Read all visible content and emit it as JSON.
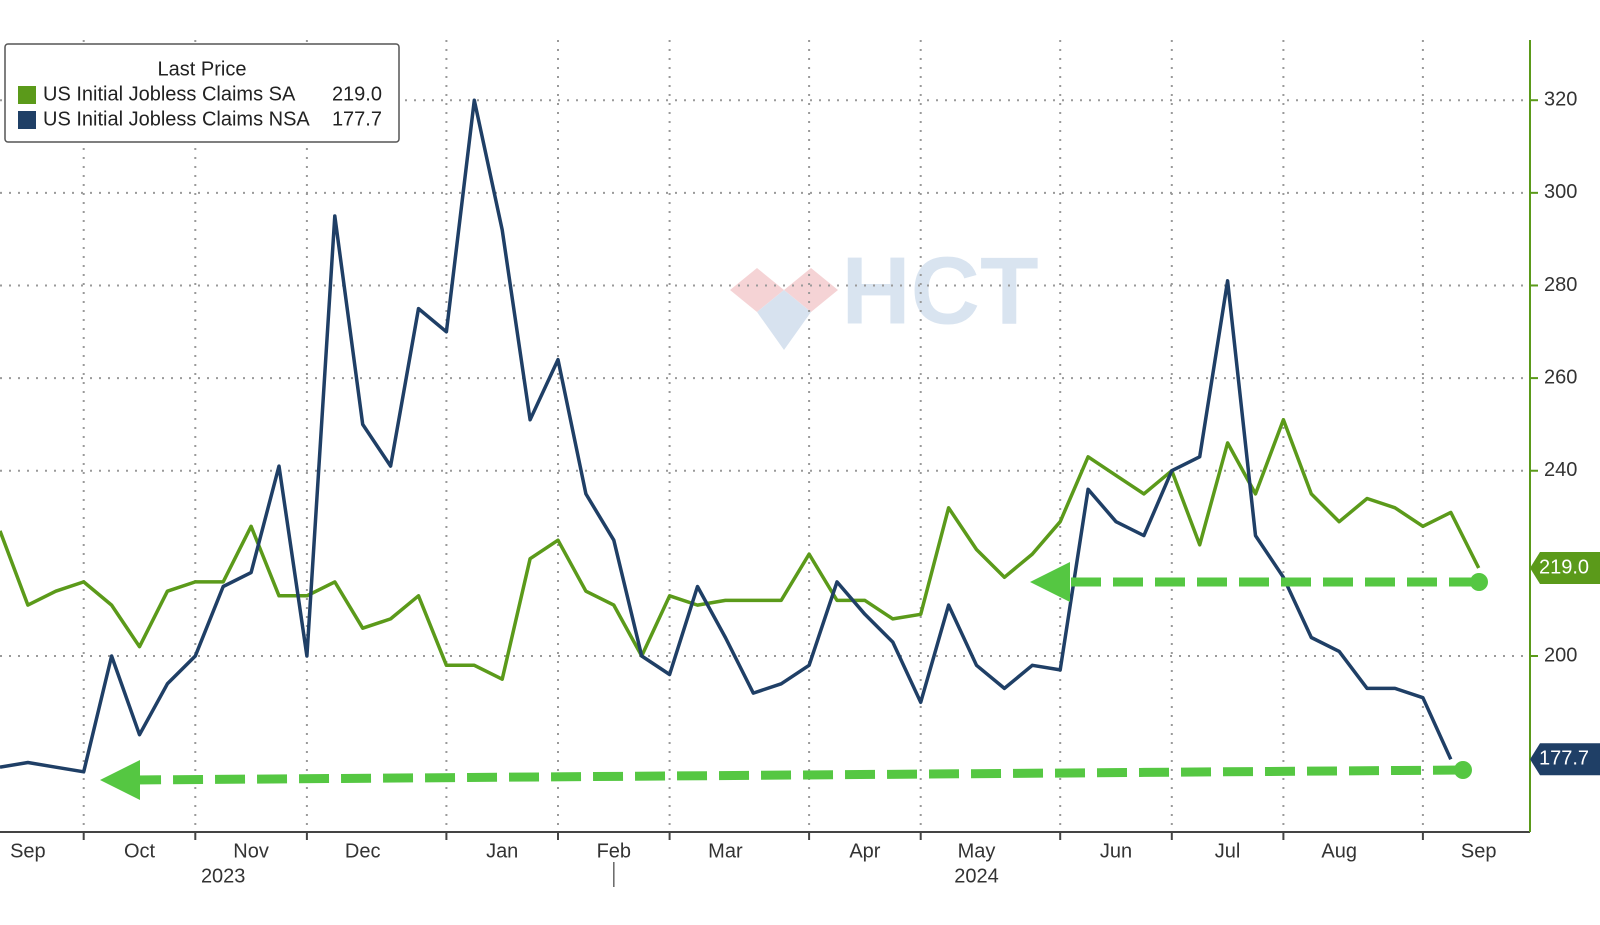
{
  "chart_data": {
    "type": "line",
    "legend_title": "Last Price",
    "categories": [
      null,
      "Sep",
      null,
      null,
      null,
      "Oct",
      null,
      null,
      null,
      "Nov",
      null,
      null,
      null,
      "Dec",
      null,
      null,
      null,
      null,
      "Jan",
      null,
      null,
      null,
      "Feb",
      null,
      null,
      null,
      "Mar",
      null,
      null,
      null,
      null,
      "Apr",
      null,
      null,
      null,
      "May",
      null,
      null,
      null,
      null,
      "Jun",
      null,
      null,
      null,
      "Jul",
      null,
      null,
      null,
      "Aug",
      null,
      null,
      null,
      null,
      "Sep"
    ],
    "years": [
      null,
      null,
      null,
      null,
      null,
      null,
      null,
      null,
      "2023",
      null,
      null,
      null,
      null,
      null,
      null,
      null,
      null,
      null,
      null,
      null,
      null,
      null,
      null,
      null,
      null,
      null,
      null,
      null,
      null,
      null,
      null,
      null,
      null,
      null,
      null,
      "2024",
      null,
      null,
      null,
      null,
      null,
      null,
      null,
      null,
      null,
      null,
      null,
      null,
      null,
      null,
      null,
      null,
      null,
      null
    ],
    "series": [
      {
        "name": "US Initial Jobless Claims SA",
        "color": "#5b9a1a",
        "last_label": "219.0",
        "values": [
          227,
          211,
          214,
          216,
          211,
          202,
          214,
          216,
          216,
          228,
          213,
          213,
          216,
          206,
          208,
          213,
          198,
          198,
          195,
          221,
          225,
          214,
          211,
          200,
          213,
          211,
          212,
          212,
          212,
          222,
          212,
          212,
          208,
          209,
          232,
          223,
          217,
          222,
          229,
          243,
          239,
          235,
          240,
          224,
          246,
          235,
          251,
          235,
          229,
          234,
          232,
          228,
          231,
          219.0
        ]
      },
      {
        "name": "US Initial Jobless Claims NSA",
        "color": "#1f3f66",
        "last_label": "177.7",
        "values": [
          176,
          177,
          176,
          175,
          200,
          183,
          194,
          200,
          215,
          218,
          241,
          200,
          295,
          250,
          241,
          275,
          270,
          320,
          292,
          251,
          264,
          235,
          225,
          200,
          196,
          215,
          204,
          192,
          194,
          198,
          216,
          209,
          203,
          190,
          211,
          198,
          193,
          198,
          197,
          236,
          229,
          226,
          240,
          243,
          281,
          226,
          217,
          204,
          201,
          193,
          193,
          191,
          177.7,
          null
        ]
      }
    ],
    "ylim": [
      162,
      333
    ],
    "yticks": [
      200,
      240,
      260,
      280,
      300,
      320
    ],
    "grid": true,
    "legend": "upper left",
    "watermark": "HCT"
  }
}
